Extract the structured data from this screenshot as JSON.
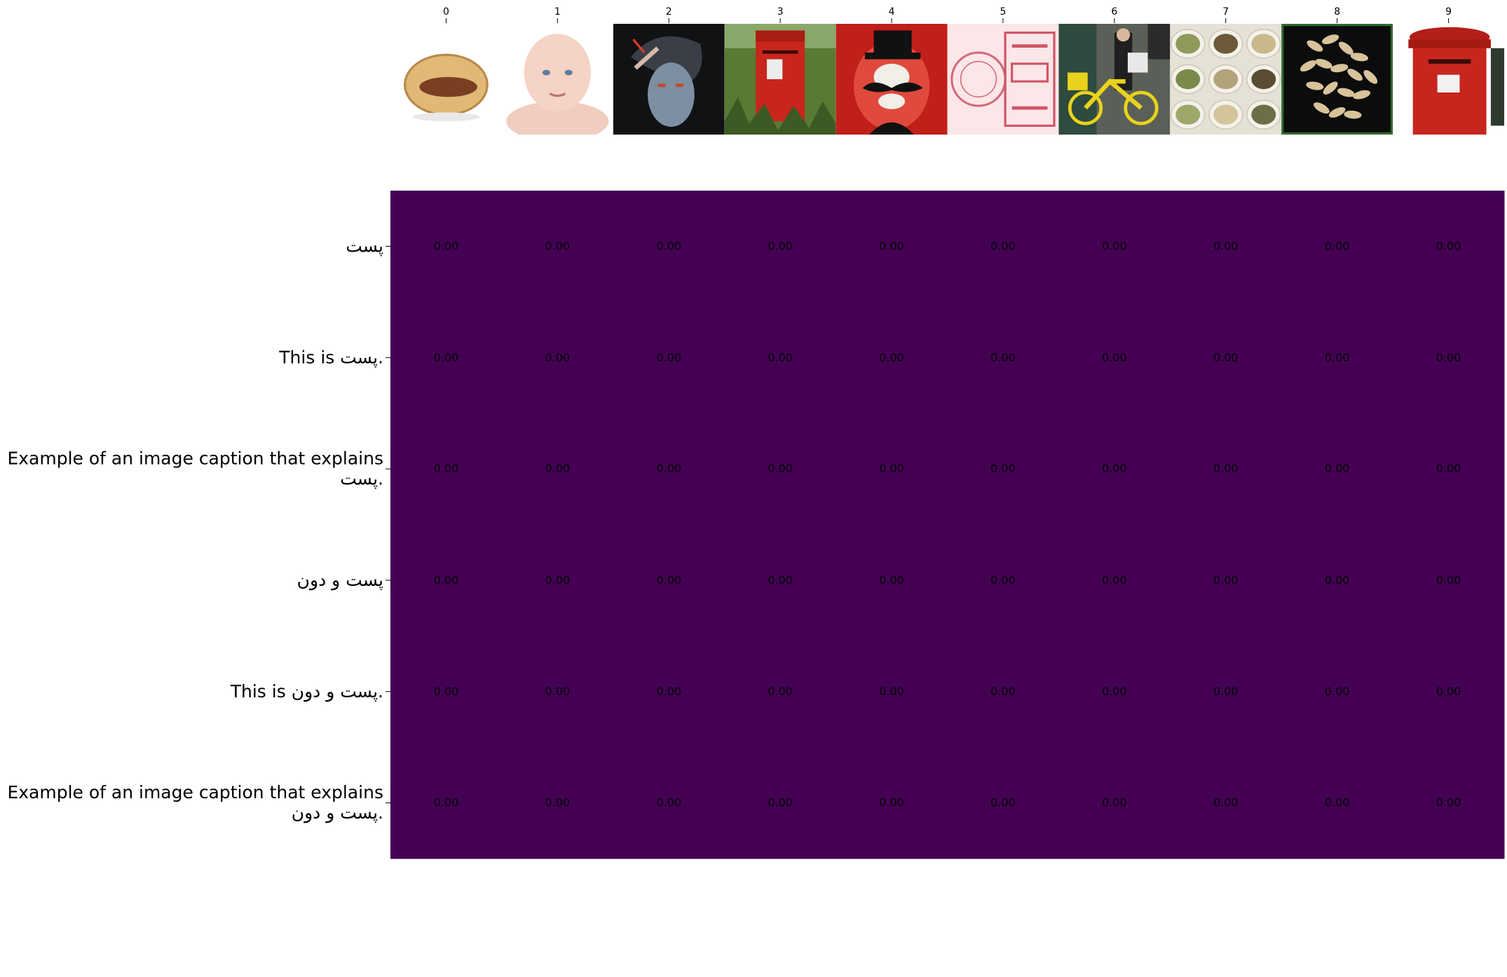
{
  "chart_data": {
    "type": "heatmap",
    "title": "",
    "xlabel": "",
    "ylabel": "",
    "x_tick_labels": [
      "0",
      "1",
      "2",
      "3",
      "4",
      "5",
      "6",
      "7",
      "8",
      "9"
    ],
    "images": [
      {
        "index": "0",
        "subject": "pistachio nut"
      },
      {
        "index": "1",
        "subject": "baby face"
      },
      {
        "index": "2",
        "subject": "woman applying makeup"
      },
      {
        "index": "3",
        "subject": "red post box in grass"
      },
      {
        "index": "4",
        "subject": "cartoon villain with top hat"
      },
      {
        "index": "5",
        "subject": "red postage stamp postmark"
      },
      {
        "index": "6",
        "subject": "mail carrier with yellow bicycle"
      },
      {
        "index": "7",
        "subject": "sacks of grains and spices"
      },
      {
        "index": "8",
        "subject": "seeds on dark background"
      },
      {
        "index": "9",
        "subject": "red pillar post box"
      }
    ],
    "y_tick_labels": [
      [
        "پست"
      ],
      [
        "This is پست."
      ],
      [
        "Example of an image caption that explains",
        "پست."
      ],
      [
        "پست و دون"
      ],
      [
        "This is پست و دون."
      ],
      [
        "Example of an image caption that explains",
        "پست و دون."
      ]
    ],
    "values": [
      [
        0.0,
        0.0,
        0.0,
        0.0,
        0.0,
        0.0,
        0.0,
        0.0,
        0.0,
        0.0
      ],
      [
        0.0,
        0.0,
        0.0,
        0.0,
        0.0,
        0.0,
        0.0,
        0.0,
        0.0,
        0.0
      ],
      [
        0.0,
        0.0,
        0.0,
        0.0,
        0.0,
        0.0,
        0.0,
        0.0,
        0.0,
        0.0
      ],
      [
        0.0,
        0.0,
        0.0,
        0.0,
        0.0,
        0.0,
        0.0,
        0.0,
        0.0,
        0.0
      ],
      [
        0.0,
        0.0,
        0.0,
        0.0,
        0.0,
        0.0,
        0.0,
        0.0,
        0.0,
        0.0
      ],
      [
        0.0,
        0.0,
        0.0,
        0.0,
        0.0,
        0.0,
        0.0,
        0.0,
        0.0,
        0.0
      ]
    ],
    "value_format": "0.00",
    "colormap": "viridis",
    "cell_color": "#440154",
    "annotation_color": "#000000",
    "grid": false,
    "legend": "none"
  }
}
